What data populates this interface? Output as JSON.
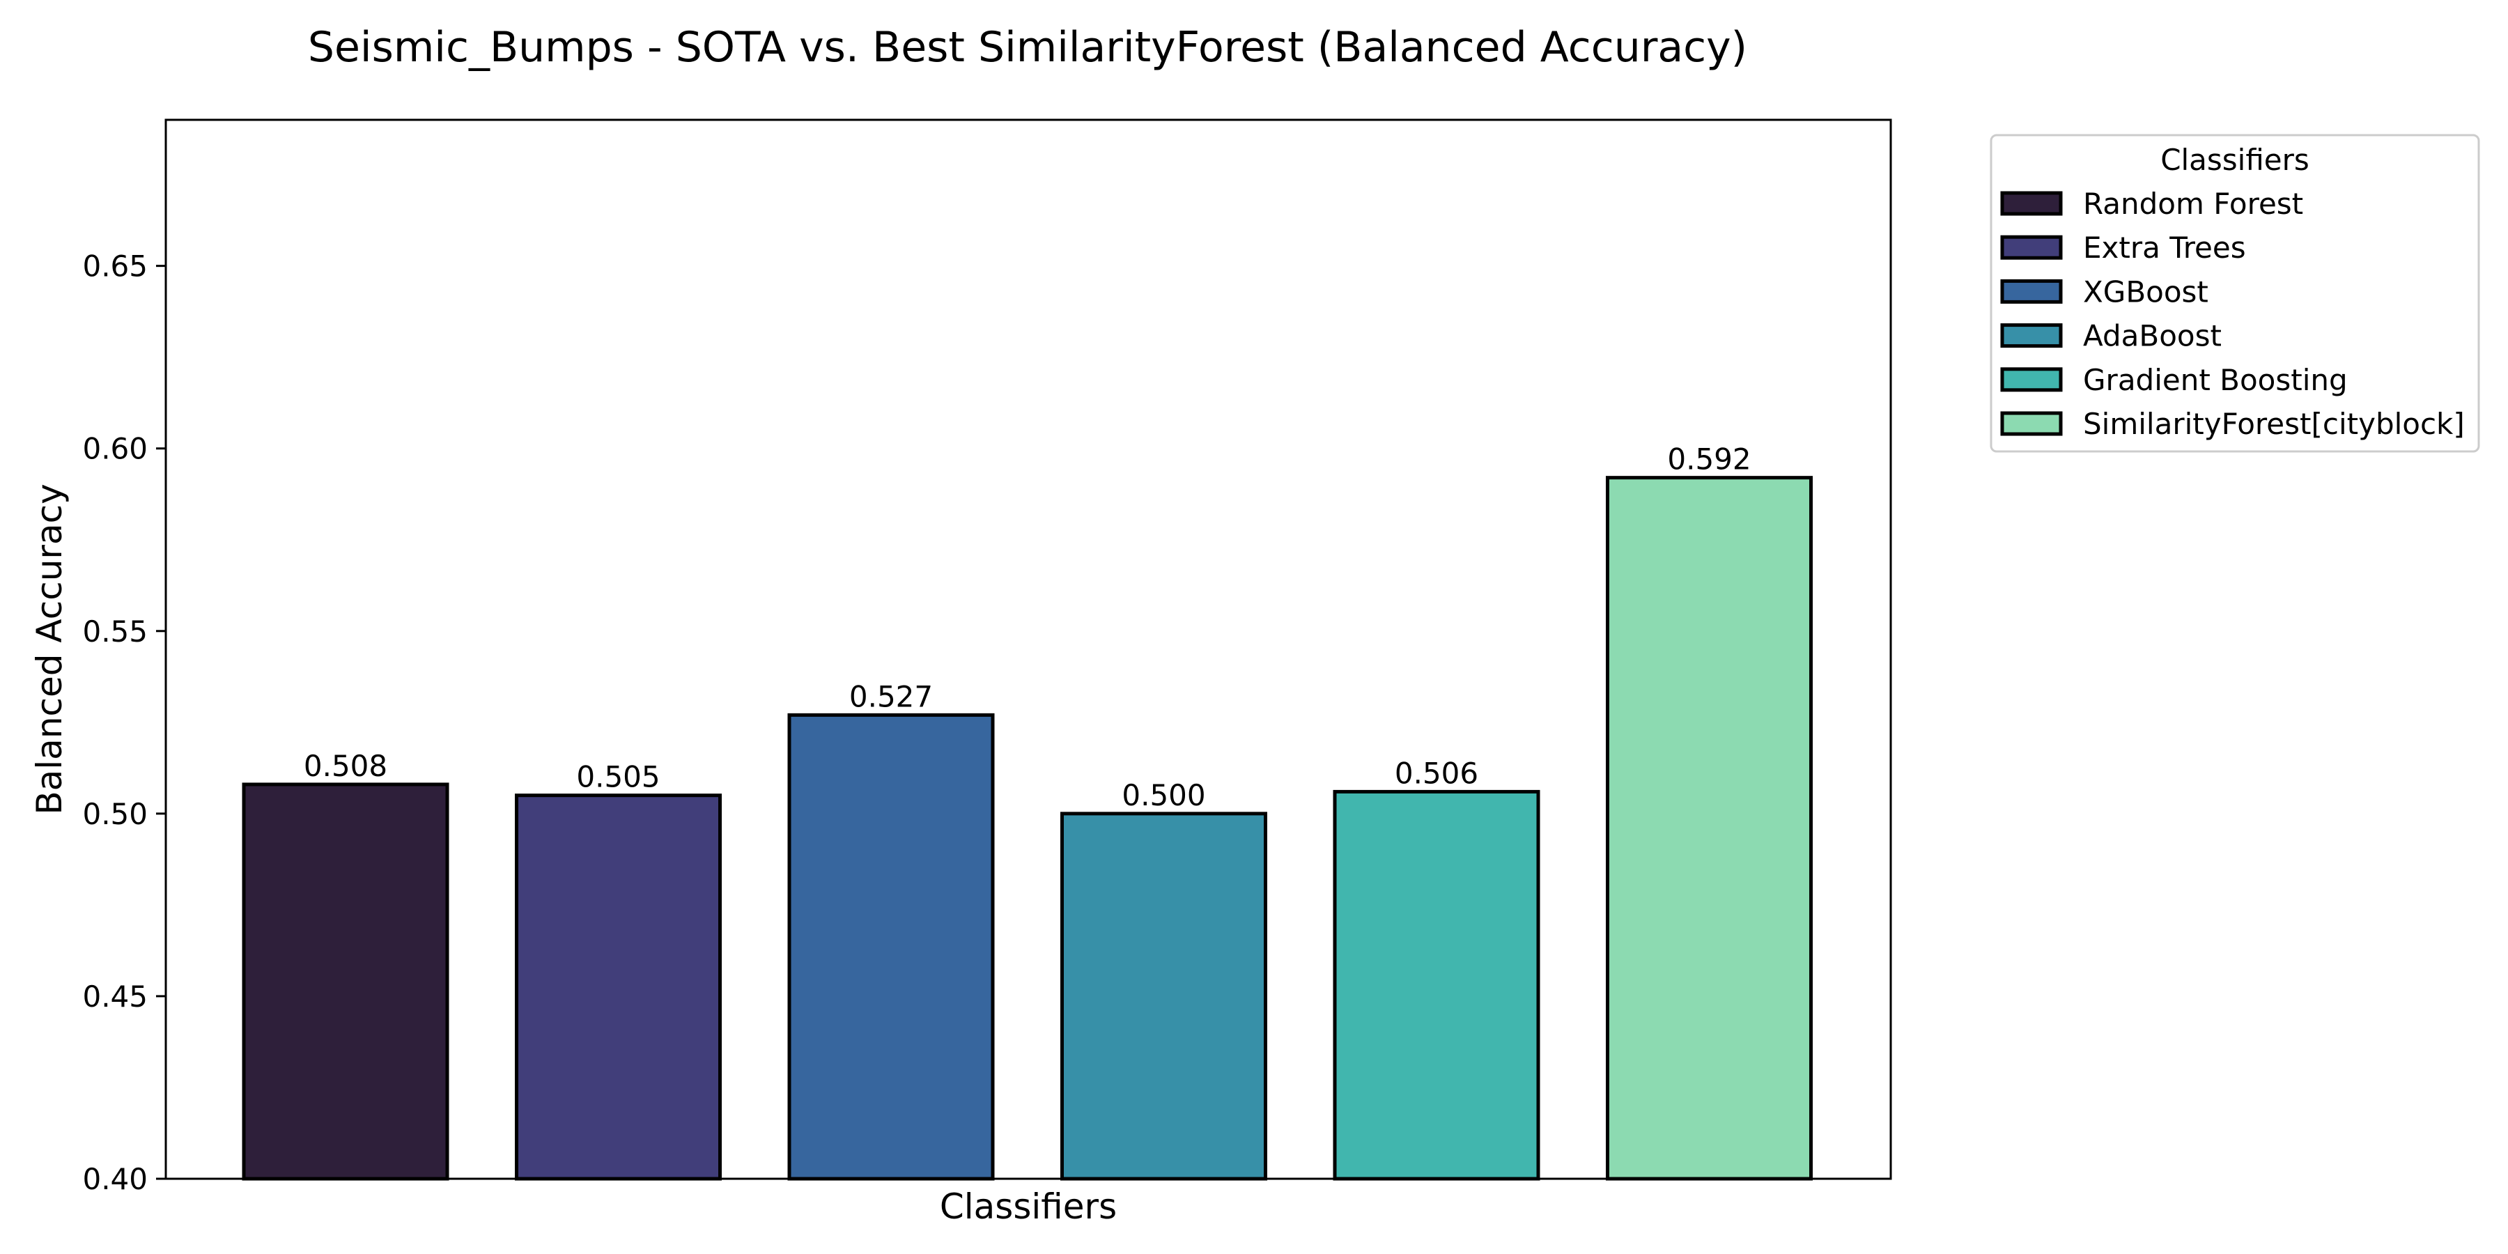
{
  "chart_data": {
    "type": "bar",
    "title": "Seismic_Bumps - SOTA vs. Best SimilarityForest (Balanced Accuracy)",
    "xlabel": "Classifiers",
    "ylabel": "Balanced Accuracy",
    "ylim": [
      0.4,
      0.69
    ],
    "yticks": [
      "0.40",
      "0.45",
      "0.50",
      "0.55",
      "0.60",
      "0.65"
    ],
    "grid": false,
    "legend_title": "Classifiers",
    "legend_position": "outside-top-right",
    "categories": [
      "Random Forest",
      "Extra Trees",
      "XGBoost",
      "AdaBoost",
      "Gradient Boosting",
      "SimilarityForest[cityblock]"
    ],
    "values": [
      0.508,
      0.505,
      0.527,
      0.5,
      0.506,
      0.592
    ],
    "value_labels": [
      "0.508",
      "0.505",
      "0.527",
      "0.500",
      "0.506",
      "0.592"
    ],
    "colors": [
      "#2e1f3a",
      "#413e7a",
      "#37669e",
      "#3790a8",
      "#41b6ae",
      "#8cdab1"
    ],
    "edge_color": "#000000"
  }
}
